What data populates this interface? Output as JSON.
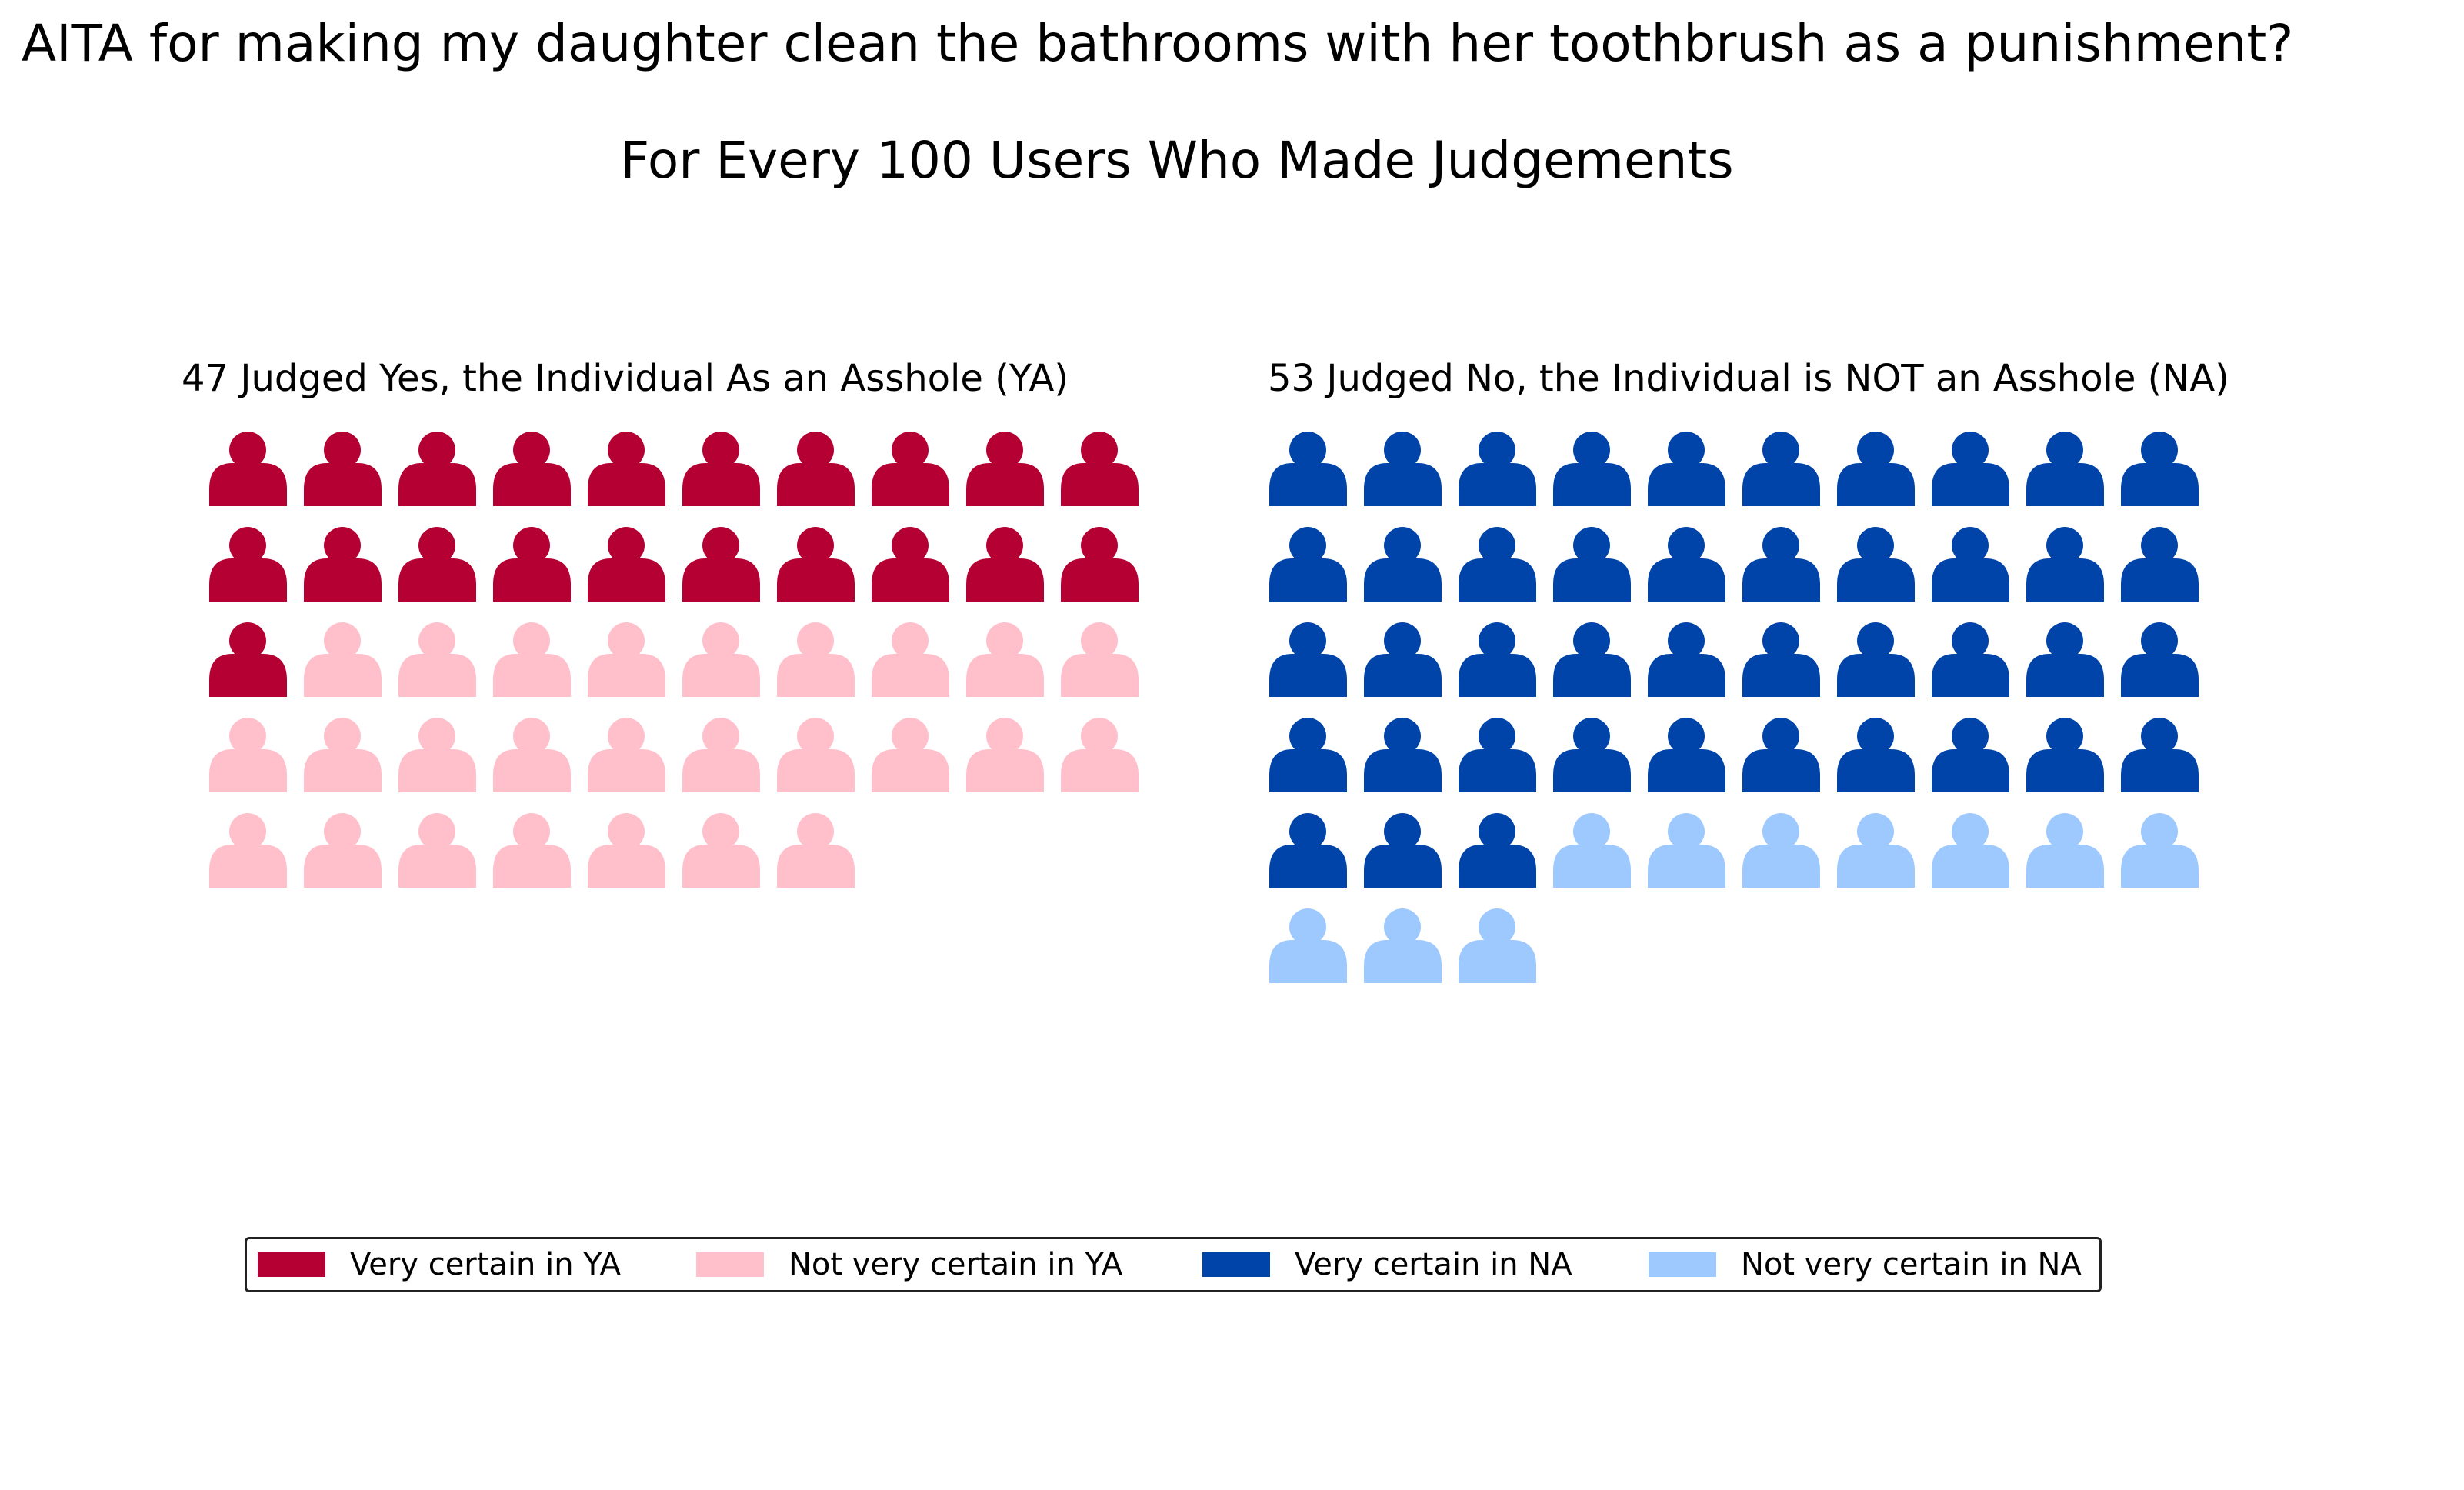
{
  "chart_data": {
    "type": "pictogram",
    "title": "AITA for making my daughter clean the bathrooms with her toothbrush as a punishment?",
    "subtitle": "For Every 100 Users Who Made Judgements",
    "panels": [
      {
        "title": "47 Judged Yes, the Individual As an Asshole (YA)",
        "total": 47,
        "columns": 10,
        "segments": [
          {
            "name": "Very certain in YA",
            "count": 21,
            "color": "#b50033"
          },
          {
            "name": "Not very certain in YA",
            "count": 26,
            "color": "#ffc0cb"
          }
        ]
      },
      {
        "title": "53 Judged No, the Individual is NOT an Asshole (NA)",
        "total": 53,
        "columns": 10,
        "segments": [
          {
            "name": "Very certain in NA",
            "count": 43,
            "color": "#0044aa"
          },
          {
            "name": "Not very certain in NA",
            "count": 10,
            "color": "#9ec9ff"
          }
        ]
      }
    ],
    "legend": {
      "placement": "bottom",
      "entries": [
        {
          "label": "Very certain in YA",
          "color": "#b50033"
        },
        {
          "label": "Not very certain in YA",
          "color": "#ffc0cb"
        },
        {
          "label": "Very certain in NA",
          "color": "#0044aa"
        },
        {
          "label": "Not very certain in NA",
          "color": "#9ec9ff"
        }
      ]
    }
  }
}
